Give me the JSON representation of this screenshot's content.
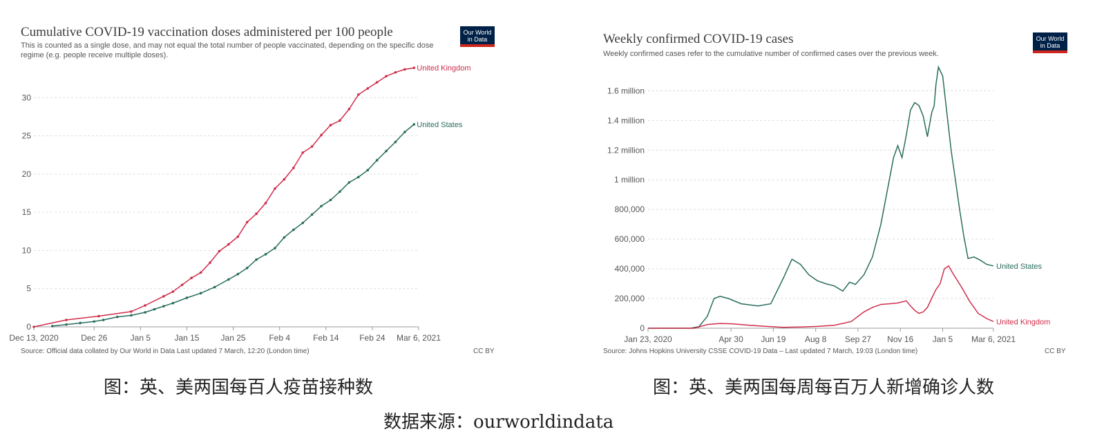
{
  "chart_data": [
    {
      "type": "line",
      "title": "Cumulative COVID-19 vaccination doses administered per 100 people",
      "subtitle": "This is counted as a single dose, and may not equal the total number of people vaccinated, depending on the specific dose regime (e.g. people receive multiple doses).",
      "logo": "Our World in Data",
      "source": "Source: Official data collated by Our World in Data   Last updated 7 March, 12:20 (London time)",
      "license": "CC BY",
      "x_ticks": [
        "Dec 13, 2020",
        "Dec 26",
        "Jan 5",
        "Jan 15",
        "Jan 25",
        "Feb 4",
        "Feb 14",
        "Feb 24",
        "Mar 6, 2021"
      ],
      "x_tick_days": [
        0,
        13,
        23,
        33,
        43,
        53,
        63,
        73,
        83
      ],
      "xlim": [
        0,
        83
      ],
      "y_ticks": [
        "0",
        "5",
        "10",
        "15",
        "20",
        "25",
        "30"
      ],
      "y_tick_values": [
        0,
        5,
        10,
        15,
        20,
        25,
        30
      ],
      "ylim": [
        0,
        35
      ],
      "grid": true,
      "series": [
        {
          "name": "United Kingdom",
          "color": "#ce2c4a",
          "x": [
            0,
            7,
            14,
            21,
            24,
            28,
            30,
            32,
            34,
            36,
            38,
            40,
            42,
            44,
            46,
            48,
            50,
            52,
            54,
            56,
            58,
            60,
            62,
            64,
            66,
            68,
            70,
            72,
            74,
            76,
            78,
            80,
            82
          ],
          "y": [
            0,
            0.9,
            1.4,
            2.0,
            2.8,
            4.0,
            4.6,
            5.5,
            6.4,
            7.1,
            8.4,
            9.9,
            10.8,
            11.8,
            13.7,
            14.8,
            16.2,
            18.1,
            19.3,
            20.8,
            22.8,
            23.6,
            25.1,
            26.4,
            27.0,
            28.5,
            30.4,
            31.2,
            32.0,
            32.8,
            33.3,
            33.7,
            33.9
          ]
        },
        {
          "name": "United States",
          "color": "#286c5c",
          "x": [
            4,
            7,
            10,
            13,
            15,
            18,
            21,
            24,
            26,
            28,
            30,
            33,
            36,
            39,
            42,
            44,
            46,
            48,
            50,
            52,
            54,
            56,
            58,
            60,
            62,
            64,
            66,
            68,
            70,
            72,
            74,
            76,
            78,
            80,
            82
          ],
          "y": [
            0.1,
            0.3,
            0.5,
            0.7,
            0.9,
            1.3,
            1.5,
            1.9,
            2.3,
            2.7,
            3.1,
            3.8,
            4.4,
            5.2,
            6.2,
            6.9,
            7.7,
            8.8,
            9.5,
            10.3,
            11.7,
            12.7,
            13.6,
            14.7,
            15.8,
            16.6,
            17.7,
            18.9,
            19.6,
            20.5,
            21.8,
            23.0,
            24.2,
            25.5,
            26.5
          ]
        }
      ]
    },
    {
      "type": "line",
      "title": "Weekly confirmed COVID-19 cases",
      "subtitle": "Weekly confirmed cases refer to the cumulative number of confirmed cases over the previous week.",
      "logo": "Our World in Data",
      "source": "Source: Johns Hopkins University CSSE COVID-19 Data – Last updated 7 March, 19:03 (London time)",
      "license": "CC BY",
      "x_ticks": [
        "Jan 23, 2020",
        "Apr 30",
        "Jun 19",
        "Aug 8",
        "Sep 27",
        "Nov 16",
        "Jan 5",
        "Mar 6, 2021"
      ],
      "x_tick_days": [
        0,
        98,
        148,
        198,
        248,
        298,
        348,
        408
      ],
      "xlim": [
        0,
        408
      ],
      "y_ticks": [
        "0",
        "200,000",
        "400,000",
        "600,000",
        "800,000",
        "1 million",
        "1.2 million",
        "1.4 million",
        "1.6 million"
      ],
      "y_tick_values": [
        0,
        200000,
        400000,
        600000,
        800000,
        1000000,
        1200000,
        1400000,
        1600000
      ],
      "ylim": [
        0,
        1760000
      ],
      "grid": true,
      "series": [
        {
          "name": "United States",
          "color": "#286c5c",
          "x": [
            0,
            50,
            60,
            70,
            78,
            85,
            95,
            110,
            130,
            145,
            160,
            170,
            180,
            190,
            200,
            210,
            220,
            230,
            238,
            245,
            255,
            265,
            275,
            285,
            290,
            295,
            300,
            305,
            310,
            315,
            320,
            325,
            330,
            335,
            338,
            340,
            343,
            348,
            353,
            358,
            363,
            368,
            373,
            378,
            385,
            392,
            400,
            408
          ],
          "y": [
            0,
            0,
            10000,
            80000,
            200000,
            215000,
            200000,
            165000,
            150000,
            165000,
            340000,
            465000,
            430000,
            360000,
            320000,
            300000,
            285000,
            250000,
            310000,
            295000,
            360000,
            480000,
            700000,
            1000000,
            1150000,
            1230000,
            1150000,
            1300000,
            1470000,
            1520000,
            1500000,
            1430000,
            1290000,
            1450000,
            1500000,
            1640000,
            1760000,
            1700000,
            1450000,
            1200000,
            1000000,
            800000,
            620000,
            470000,
            480000,
            460000,
            430000,
            420000
          ]
        },
        {
          "name": "United Kingdom",
          "color": "#ce2c4a",
          "x": [
            0,
            55,
            70,
            85,
            100,
            120,
            140,
            160,
            180,
            200,
            220,
            240,
            255,
            265,
            275,
            285,
            295,
            305,
            310,
            315,
            320,
            325,
            330,
            335,
            340,
            345,
            350,
            355,
            360,
            370,
            380,
            390,
            400,
            408
          ],
          "y": [
            0,
            0,
            25000,
            32000,
            30000,
            20000,
            12000,
            6000,
            8000,
            12000,
            20000,
            45000,
            110000,
            140000,
            160000,
            165000,
            170000,
            185000,
            150000,
            120000,
            100000,
            110000,
            140000,
            200000,
            260000,
            300000,
            400000,
            420000,
            370000,
            280000,
            180000,
            100000,
            65000,
            45000
          ]
        }
      ]
    }
  ],
  "captions": {
    "left": "图：英、美两国每百人疫苗接种数",
    "right": "图：英、美两国每周每百万人新增确诊人数",
    "source": "数据来源：ourworldindata"
  }
}
